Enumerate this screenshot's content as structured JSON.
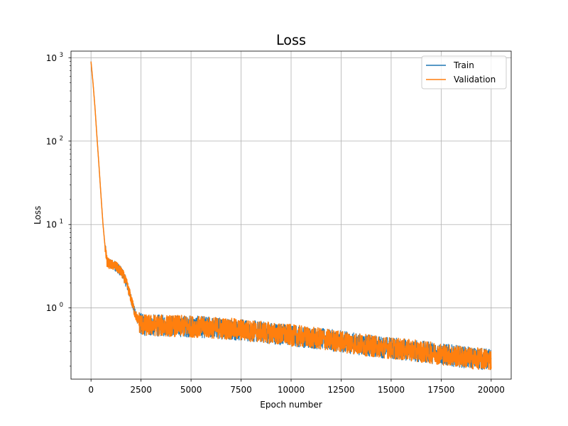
{
  "chart_data": {
    "type": "line",
    "title": "Loss",
    "xlabel": "Epoch number",
    "ylabel": "Loss",
    "xlim": [
      -1000,
      21000
    ],
    "ylim": [
      0.14,
      1200
    ],
    "yscale": "log",
    "grid": true,
    "legend": {
      "placement": "top-right",
      "entries": [
        "Train",
        "Validation"
      ]
    },
    "x_ticks": [
      "0",
      "2500",
      "5000",
      "7500",
      "10000",
      "12500",
      "15000",
      "17500",
      "20000"
    ],
    "x_tick_values": [
      0,
      2500,
      5000,
      7500,
      10000,
      12500,
      15000,
      17500,
      20000
    ],
    "y_ticks": [
      {
        "value": 1,
        "base": "10",
        "exp": "0"
      },
      {
        "value": 10,
        "base": "10",
        "exp": "1"
      },
      {
        "value": 100,
        "base": "10",
        "exp": "2"
      },
      {
        "value": 1000,
        "base": "10",
        "exp": "3"
      }
    ],
    "x": [
      0,
      100,
      200,
      300,
      400,
      500,
      600,
      700,
      800,
      900,
      1000,
      1200,
      1400,
      1600,
      1800,
      2000,
      2200,
      2400,
      2600,
      3000,
      4000,
      5000,
      6000,
      7000,
      8000,
      9000,
      10000,
      11000,
      12000,
      13000,
      14000,
      15000,
      16000,
      17000,
      18000,
      19000,
      20000
    ],
    "series": [
      {
        "name": "Train",
        "color": "#1f77b4",
        "values": [
          900,
          500,
          250,
          110,
          50,
          22,
          10,
          5.5,
          3.6,
          3.4,
          3.3,
          3.2,
          2.9,
          2.5,
          1.9,
          1.3,
          0.85,
          0.68,
          0.62,
          0.62,
          0.61,
          0.6,
          0.58,
          0.56,
          0.53,
          0.5,
          0.47,
          0.44,
          0.41,
          0.38,
          0.35,
          0.33,
          0.31,
          0.29,
          0.27,
          0.25,
          0.24
        ]
      },
      {
        "name": "Validation",
        "color": "#ff7f0e",
        "values": [
          900,
          500,
          250,
          110,
          50,
          22,
          10,
          5.5,
          3.6,
          3.4,
          3.3,
          3.2,
          2.9,
          2.5,
          1.9,
          1.3,
          0.85,
          0.68,
          0.62,
          0.62,
          0.61,
          0.6,
          0.58,
          0.56,
          0.53,
          0.5,
          0.47,
          0.44,
          0.41,
          0.38,
          0.35,
          0.33,
          0.31,
          0.29,
          0.27,
          0.25,
          0.24
        ]
      }
    ]
  }
}
